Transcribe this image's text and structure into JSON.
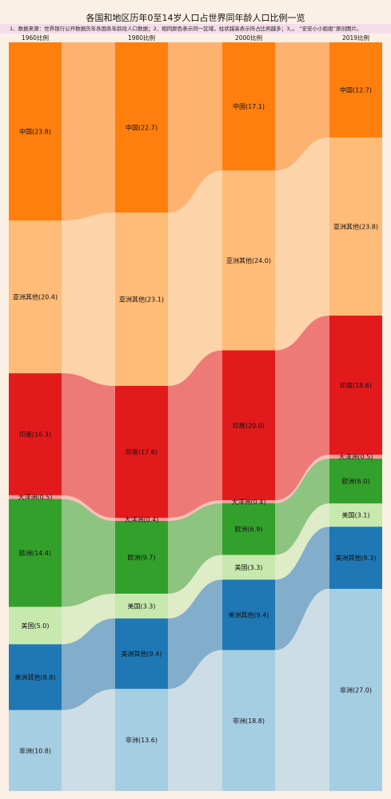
{
  "title": "各国和地区历年0至14岁人口占世界同年龄人口比例一览",
  "note": "1、数据来源：世界银行公开数据历年各国各年龄段人口数据；2、相同颜色表示同一区域，柱状越高表示所占比例越多；3、。 “安安小小姐姐”原创图片。",
  "colors": {
    "中国": "#ff7f0e",
    "亚洲其他": "#ffbb78",
    "印度": "#e31a1c",
    "大洋洲": "#fb9a99",
    "欧洲": "#33a02c",
    "美国": "#c7e9ad",
    "美洲其他": "#1f78b4",
    "非洲": "#a6cee3"
  },
  "chart_data": {
    "type": "sankey-stacked-bar",
    "title": "各国和地区历年0至14岁人口占世界同年龄人口比例一览",
    "categories": [
      "1960比例",
      "1980比例",
      "2000比例",
      "2019比例"
    ],
    "series": [
      {
        "name": "中国",
        "values": [
          23.8,
          22.7,
          17.1,
          12.7
        ]
      },
      {
        "name": "亚洲其他",
        "values": [
          20.4,
          23.1,
          24.0,
          23.8
        ]
      },
      {
        "name": "印度",
        "values": [
          16.3,
          17.6,
          20.0,
          18.6
        ]
      },
      {
        "name": "大洋洲",
        "values": [
          0.5,
          0.4,
          0.4,
          0.5
        ]
      },
      {
        "name": "欧洲",
        "values": [
          14.4,
          9.7,
          6.9,
          6.0
        ]
      },
      {
        "name": "美国",
        "values": [
          5.0,
          3.3,
          3.3,
          3.1
        ]
      },
      {
        "name": "美洲其他",
        "values": [
          8.8,
          9.4,
          9.4,
          8.3
        ]
      },
      {
        "name": "非洲",
        "values": [
          10.8,
          13.6,
          18.8,
          27.0
        ]
      }
    ]
  }
}
